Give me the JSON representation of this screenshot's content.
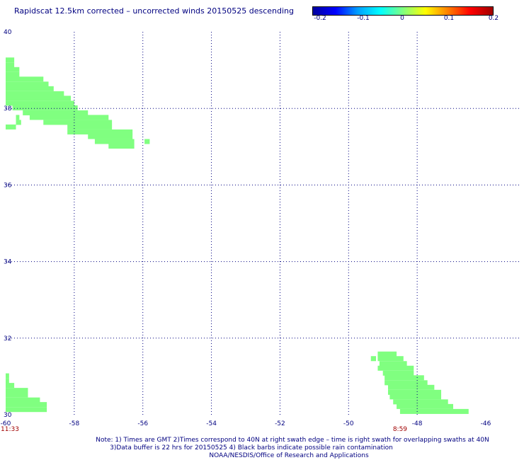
{
  "title": "Rapidscat 12.5km corrected – uncorrected winds 20150525 descending",
  "colorbar": {
    "ticks": [
      "-0.2",
      "-0.1",
      "0",
      "0.1",
      "0.2"
    ],
    "colors": [
      "#0000a0",
      "#0000ff",
      "#00a0ff",
      "#00ffff",
      "#80ff80",
      "#ffff00",
      "#ff8000",
      "#ff0000",
      "#a00000"
    ]
  },
  "chart_data": {
    "type": "heatmap",
    "xlim": [
      -60,
      -46
    ],
    "ylim": [
      30,
      40
    ],
    "x_ticks": [
      -60,
      -58,
      -56,
      -54,
      -52,
      -50,
      -48,
      -46
    ],
    "x_tick_labels": [
      "-60",
      "-58",
      "-56",
      "-54",
      "-52",
      "-50",
      "-48",
      "-46"
    ],
    "y_ticks": [
      30,
      32,
      34,
      36,
      38,
      40
    ],
    "y_tick_labels": [
      "30",
      "32",
      "34",
      "36",
      "38",
      "40"
    ],
    "swath_times": [
      {
        "label": "11:33",
        "lon": -60
      },
      {
        "label": "8:59",
        "lon": -48.5
      }
    ],
    "cell_value": 0,
    "cell_color": "#80ff80",
    "cell_size_deg": [
      0.13,
      0.13
    ],
    "cells_rows": [
      {
        "lat": 39.2,
        "lon_ranges": [
          [
            -60,
            -59.75
          ]
        ]
      },
      {
        "lat": 39.07,
        "lon_ranges": [
          [
            -60,
            -59.75
          ]
        ]
      },
      {
        "lat": 38.95,
        "lon_ranges": [
          [
            -60,
            -59.6
          ]
        ]
      },
      {
        "lat": 38.82,
        "lon_ranges": [
          [
            -60,
            -59.6
          ]
        ]
      },
      {
        "lat": 38.7,
        "lon_ranges": [
          [
            -60,
            -58.9
          ]
        ]
      },
      {
        "lat": 38.57,
        "lon_ranges": [
          [
            -60,
            -58.75
          ]
        ]
      },
      {
        "lat": 38.45,
        "lon_ranges": [
          [
            -60,
            -58.6
          ]
        ]
      },
      {
        "lat": 38.32,
        "lon_ranges": [
          [
            -60,
            -58.3
          ]
        ]
      },
      {
        "lat": 38.2,
        "lon_ranges": [
          [
            -60,
            -58.1
          ]
        ]
      },
      {
        "lat": 38.07,
        "lon_ranges": [
          [
            -60,
            -58.0
          ]
        ]
      },
      {
        "lat": 37.95,
        "lon_ranges": [
          [
            -59.8,
            -57.9
          ]
        ]
      },
      {
        "lat": 37.82,
        "lon_ranges": [
          [
            -59.5,
            -57.6
          ]
        ]
      },
      {
        "lat": 37.7,
        "lon_ranges": [
          [
            -59.7,
            -59.6
          ],
          [
            -59.3,
            -57.0
          ]
        ]
      },
      {
        "lat": 37.57,
        "lon_ranges": [
          [
            -59.7,
            -59.55
          ],
          [
            -58.9,
            -56.9
          ]
        ]
      },
      {
        "lat": 37.45,
        "lon_ranges": [
          [
            -60,
            -59.7
          ],
          [
            -58.2,
            -56.9
          ]
        ]
      },
      {
        "lat": 37.32,
        "lon_ranges": [
          [
            -58.2,
            -56.3
          ]
        ]
      },
      {
        "lat": 37.2,
        "lon_ranges": [
          [
            -57.6,
            -56.3
          ]
        ]
      },
      {
        "lat": 37.07,
        "lon_ranges": [
          [
            -57.4,
            -56.25
          ],
          [
            -55.95,
            -55.8
          ]
        ]
      },
      {
        "lat": 36.95,
        "lon_ranges": [
          [
            -57.0,
            -56.25
          ]
        ]
      },
      {
        "lat": 30.95,
        "lon_ranges": [
          [
            -60,
            -59.9
          ]
        ]
      },
      {
        "lat": 30.82,
        "lon_ranges": [
          [
            -60,
            -59.9
          ]
        ]
      },
      {
        "lat": 30.7,
        "lon_ranges": [
          [
            -60,
            -59.75
          ]
        ]
      },
      {
        "lat": 30.57,
        "lon_ranges": [
          [
            -60,
            -59.35
          ]
        ]
      },
      {
        "lat": 30.45,
        "lon_ranges": [
          [
            -60,
            -59.35
          ]
        ]
      },
      {
        "lat": 30.32,
        "lon_ranges": [
          [
            -60,
            -59.0
          ]
        ]
      },
      {
        "lat": 30.2,
        "lon_ranges": [
          [
            -60,
            -58.8
          ]
        ]
      },
      {
        "lat": 30.07,
        "lon_ranges": [
          [
            -60,
            -58.8
          ]
        ]
      },
      {
        "lat": 31.52,
        "lon_ranges": [
          [
            -49.15,
            -48.6
          ]
        ]
      },
      {
        "lat": 31.4,
        "lon_ranges": [
          [
            -49.35,
            -49.2
          ],
          [
            -49.15,
            -48.4
          ]
        ]
      },
      {
        "lat": 31.27,
        "lon_ranges": [
          [
            -49.1,
            -48.3
          ]
        ]
      },
      {
        "lat": 31.15,
        "lon_ranges": [
          [
            -49.15,
            -48.1
          ]
        ]
      },
      {
        "lat": 31.02,
        "lon_ranges": [
          [
            -49.0,
            -48.1
          ]
        ]
      },
      {
        "lat": 30.9,
        "lon_ranges": [
          [
            -48.95,
            -47.8
          ]
        ]
      },
      {
        "lat": 30.77,
        "lon_ranges": [
          [
            -48.95,
            -47.7
          ]
        ]
      },
      {
        "lat": 30.65,
        "lon_ranges": [
          [
            -48.85,
            -47.5
          ]
        ]
      },
      {
        "lat": 30.52,
        "lon_ranges": [
          [
            -48.85,
            -47.3
          ]
        ]
      },
      {
        "lat": 30.4,
        "lon_ranges": [
          [
            -48.8,
            -47.3
          ]
        ]
      },
      {
        "lat": 30.27,
        "lon_ranges": [
          [
            -48.7,
            -47.1
          ]
        ]
      },
      {
        "lat": 30.15,
        "lon_ranges": [
          [
            -48.6,
            -46.95
          ]
        ]
      },
      {
        "lat": 30.02,
        "lon_ranges": [
          [
            -48.5,
            -46.5
          ]
        ]
      }
    ]
  },
  "notes": {
    "line1": "Note: 1) Times are GMT 2)Times correspond to 40N at right swath edge – time is right swath for overlapping swaths at 40N",
    "line2": "3)Data buffer is 22 hrs for 20150525 4) Black barbs indicate possible rain contamination",
    "line3": "NOAA/NESDIS/Office of Research and Applications"
  }
}
